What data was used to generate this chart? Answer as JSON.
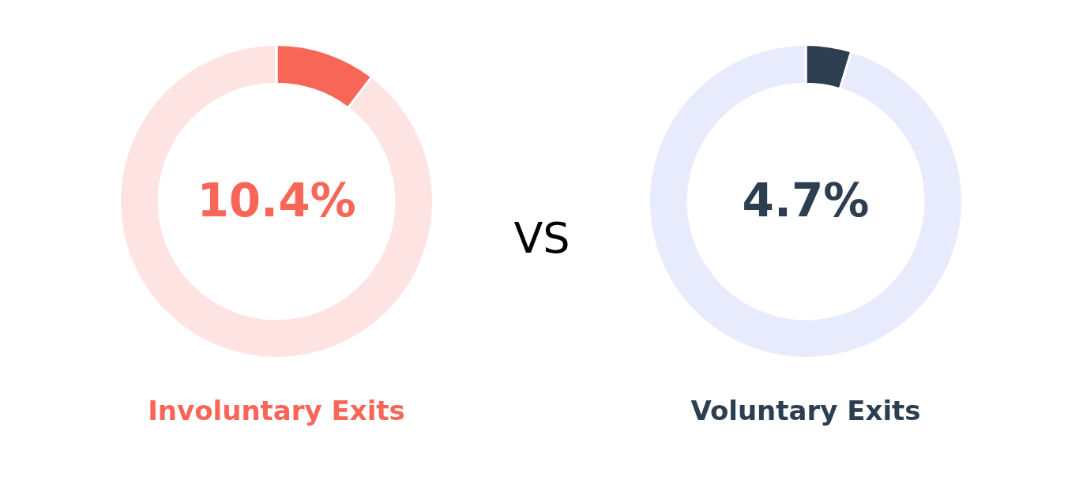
{
  "chart_data": [
    {
      "type": "donut",
      "title": "Involuntary Exits",
      "categories": [
        null,
        null
      ],
      "values": [
        10.4,
        89.6
      ],
      "colors": [
        "#f76657",
        "#fde3e1"
      ],
      "value_labels": [
        "10.4%",
        null
      ],
      "legend": false
    },
    {
      "type": "other",
      "annotations": [
        "VS"
      ]
    },
    {
      "type": "donut",
      "title": "Voluntary Exits",
      "categories": [
        null,
        null
      ],
      "values": [
        4.7,
        95.3
      ],
      "colors": [
        "#2c3e50",
        "#e8ebfb"
      ],
      "value_labels": [
        "4.7%",
        null
      ],
      "legend": false
    }
  ]
}
